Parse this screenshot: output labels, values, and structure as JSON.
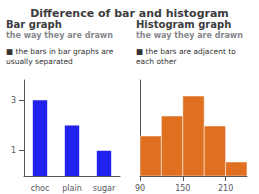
{
  "title": "Difference of bar and histogram",
  "chart_data": [
    {
      "type": "bar",
      "title": "Bar graph",
      "subtitle": "the way they are drawn",
      "annotations": [
        "■ the bars in bar graphs are\nusually separated"
      ],
      "categories": [
        "choc",
        "plain",
        "sugar"
      ],
      "values": [
        3,
        2,
        1
      ],
      "color": "#2222ee",
      "ylim": [
        0,
        3.8
      ],
      "yticks": [
        1,
        3
      ],
      "grid": false
    },
    {
      "type": "histogram",
      "title": "Histogram graph",
      "subtitle": "the way they are drawn",
      "annotations": [
        "■ the bars are adjacent to\neach other"
      ],
      "bins": [
        90,
        120,
        150,
        180,
        210,
        240
      ],
      "values": [
        2,
        3,
        4,
        2.5,
        0.7
      ],
      "color": "#e07020",
      "xlim": [
        90,
        240
      ],
      "xticks": [
        90,
        150,
        210
      ],
      "ylim": [
        0,
        4.8
      ],
      "tick_labels": "x",
      "grid": false
    }
  ]
}
